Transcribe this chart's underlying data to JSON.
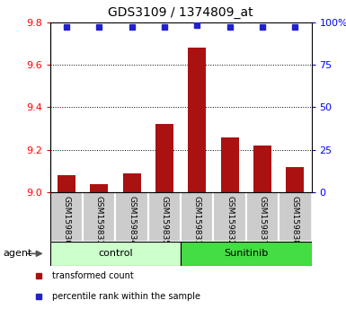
{
  "title": "GDS3109 / 1374809_at",
  "samples": [
    "GSM159830",
    "GSM159833",
    "GSM159834",
    "GSM159835",
    "GSM159831",
    "GSM159832",
    "GSM159837",
    "GSM159838"
  ],
  "red_values": [
    9.08,
    9.04,
    9.09,
    9.32,
    9.68,
    9.26,
    9.22,
    9.12
  ],
  "blue_values": [
    97,
    97,
    97,
    97.5,
    98.5,
    97,
    97,
    97
  ],
  "groups": [
    {
      "label": "control",
      "start": 0,
      "end": 4,
      "color": "#ccffcc"
    },
    {
      "label": "Sunitinib",
      "start": 4,
      "end": 8,
      "color": "#44dd44"
    }
  ],
  "ylim_left": [
    9.0,
    9.8
  ],
  "ylim_right": [
    0,
    100
  ],
  "yticks_left": [
    9.0,
    9.2,
    9.4,
    9.6,
    9.8
  ],
  "yticks_right": [
    0,
    25,
    50,
    75,
    100
  ],
  "ytick_labels_right": [
    "0",
    "25",
    "50",
    "75",
    "100%"
  ],
  "bar_color": "#aa1111",
  "dot_color": "#2222cc",
  "bar_base": 9.0,
  "grid_lines": [
    9.2,
    9.4,
    9.6
  ],
  "agent_label": "agent",
  "legend_red": "transformed count",
  "legend_blue": "percentile rank within the sample"
}
